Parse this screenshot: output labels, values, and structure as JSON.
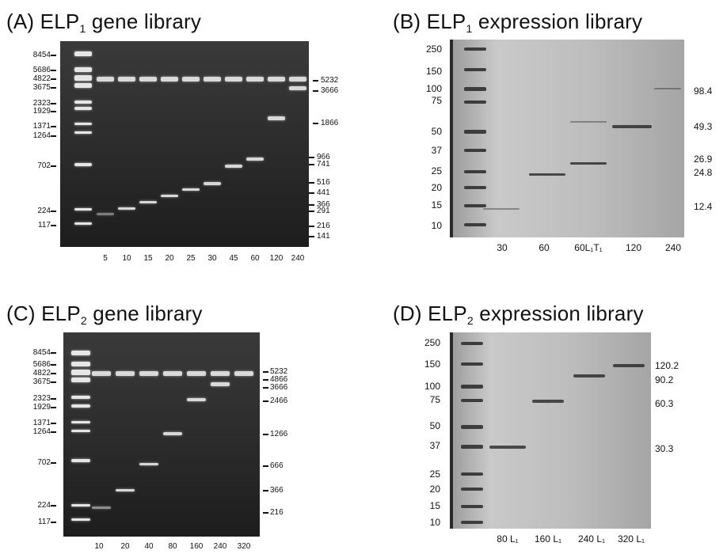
{
  "panels": {
    "a": {
      "title_prefix": "(A) ELP",
      "title_sub": "1",
      "title_suffix": " gene library",
      "left_ladder": [
        "8454",
        "5686",
        "4822",
        "3675",
        "2323",
        "1929",
        "1371",
        "1264",
        "702",
        "224",
        "117"
      ],
      "right_markers": [
        "5232",
        "3666",
        "1866",
        "966",
        "741",
        "516",
        "441",
        "366",
        "291",
        "216",
        "141"
      ],
      "lanes": [
        "5",
        "10",
        "15",
        "20",
        "25",
        "30",
        "45",
        "60",
        "120",
        "240"
      ]
    },
    "b": {
      "title_prefix": "(B) ELP",
      "title_sub": "1",
      "title_suffix": " expression library",
      "left_ladder": [
        "250",
        "150",
        "100",
        "75",
        "50",
        "37",
        "25",
        "20",
        "15",
        "10"
      ],
      "right_markers": [
        "98.4",
        "49.3",
        "26.9",
        "24.8",
        "12.4"
      ],
      "lanes": [
        "30",
        "60",
        "60L₁T₁",
        "120",
        "240"
      ]
    },
    "c": {
      "title_prefix": "(C) ELP",
      "title_sub": "2",
      "title_suffix": " gene library",
      "left_ladder": [
        "8454",
        "5686",
        "4822",
        "3675",
        "2323",
        "1929",
        "1371",
        "1264",
        "702",
        "224",
        "117"
      ],
      "right_markers": [
        "5232",
        "4866",
        "3666",
        "2466",
        "1266",
        "666",
        "366",
        "216"
      ],
      "lanes": [
        "10",
        "20",
        "40",
        "80",
        "160",
        "240",
        "320"
      ]
    },
    "d": {
      "title_prefix": "(D) ELP",
      "title_sub": "2",
      "title_suffix": " expression library",
      "left_ladder": [
        "250",
        "150",
        "100",
        "75",
        "50",
        "37",
        "25",
        "20",
        "15",
        "10"
      ],
      "right_markers": [
        "120.2",
        "90.2",
        "60.3",
        "30.3"
      ],
      "lanes": [
        "80 L₁",
        "160 L₁",
        "240 L₁",
        "320 L₁"
      ]
    }
  }
}
